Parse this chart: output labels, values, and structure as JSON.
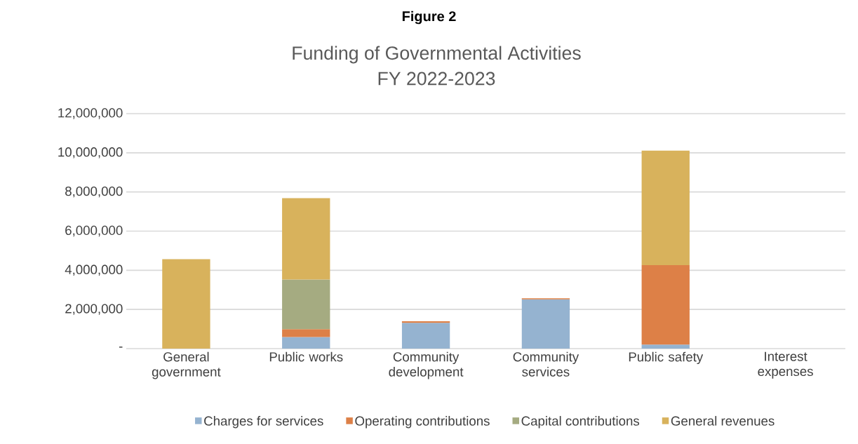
{
  "chart_data": {
    "type": "bar",
    "stacked": true,
    "title": "Funding of Governmental Activities",
    "subtitle": "FY 2022-2023",
    "annotations": [
      "Figure 2"
    ],
    "categories": [
      "General government",
      "Public works",
      "Community development",
      "Community services",
      "Public safety",
      "Interest expenses"
    ],
    "series": [
      {
        "name": "Charges for services",
        "color": "#95b3d0",
        "values": [
          null,
          590000,
          1320000,
          2520000,
          210000,
          null
        ]
      },
      {
        "name": "Operating contributions",
        "color": "#dd8047",
        "values": [
          null,
          400000,
          80000,
          50000,
          4050000,
          null
        ]
      },
      {
        "name": "Capital contributions",
        "color": "#a5ab81",
        "values": [
          null,
          2540000,
          null,
          null,
          null,
          null
        ]
      },
      {
        "name": "General revenues",
        "color": "#d8b25c",
        "values": [
          4570000,
          4150000,
          null,
          null,
          5850000,
          null
        ]
      }
    ],
    "ylim": [
      0,
      12000000
    ],
    "yticks": [
      {
        "value": 0,
        "label": "-"
      },
      {
        "value": 2000000,
        "label": "2,000,000"
      },
      {
        "value": 4000000,
        "label": "4,000,000"
      },
      {
        "value": 6000000,
        "label": "6,000,000"
      },
      {
        "value": 8000000,
        "label": "8,000,000"
      },
      {
        "value": 10000000,
        "label": "10,000,000"
      },
      {
        "value": 12000000,
        "label": "12,000,000"
      }
    ],
    "grid": "y",
    "legend": "bottom"
  }
}
